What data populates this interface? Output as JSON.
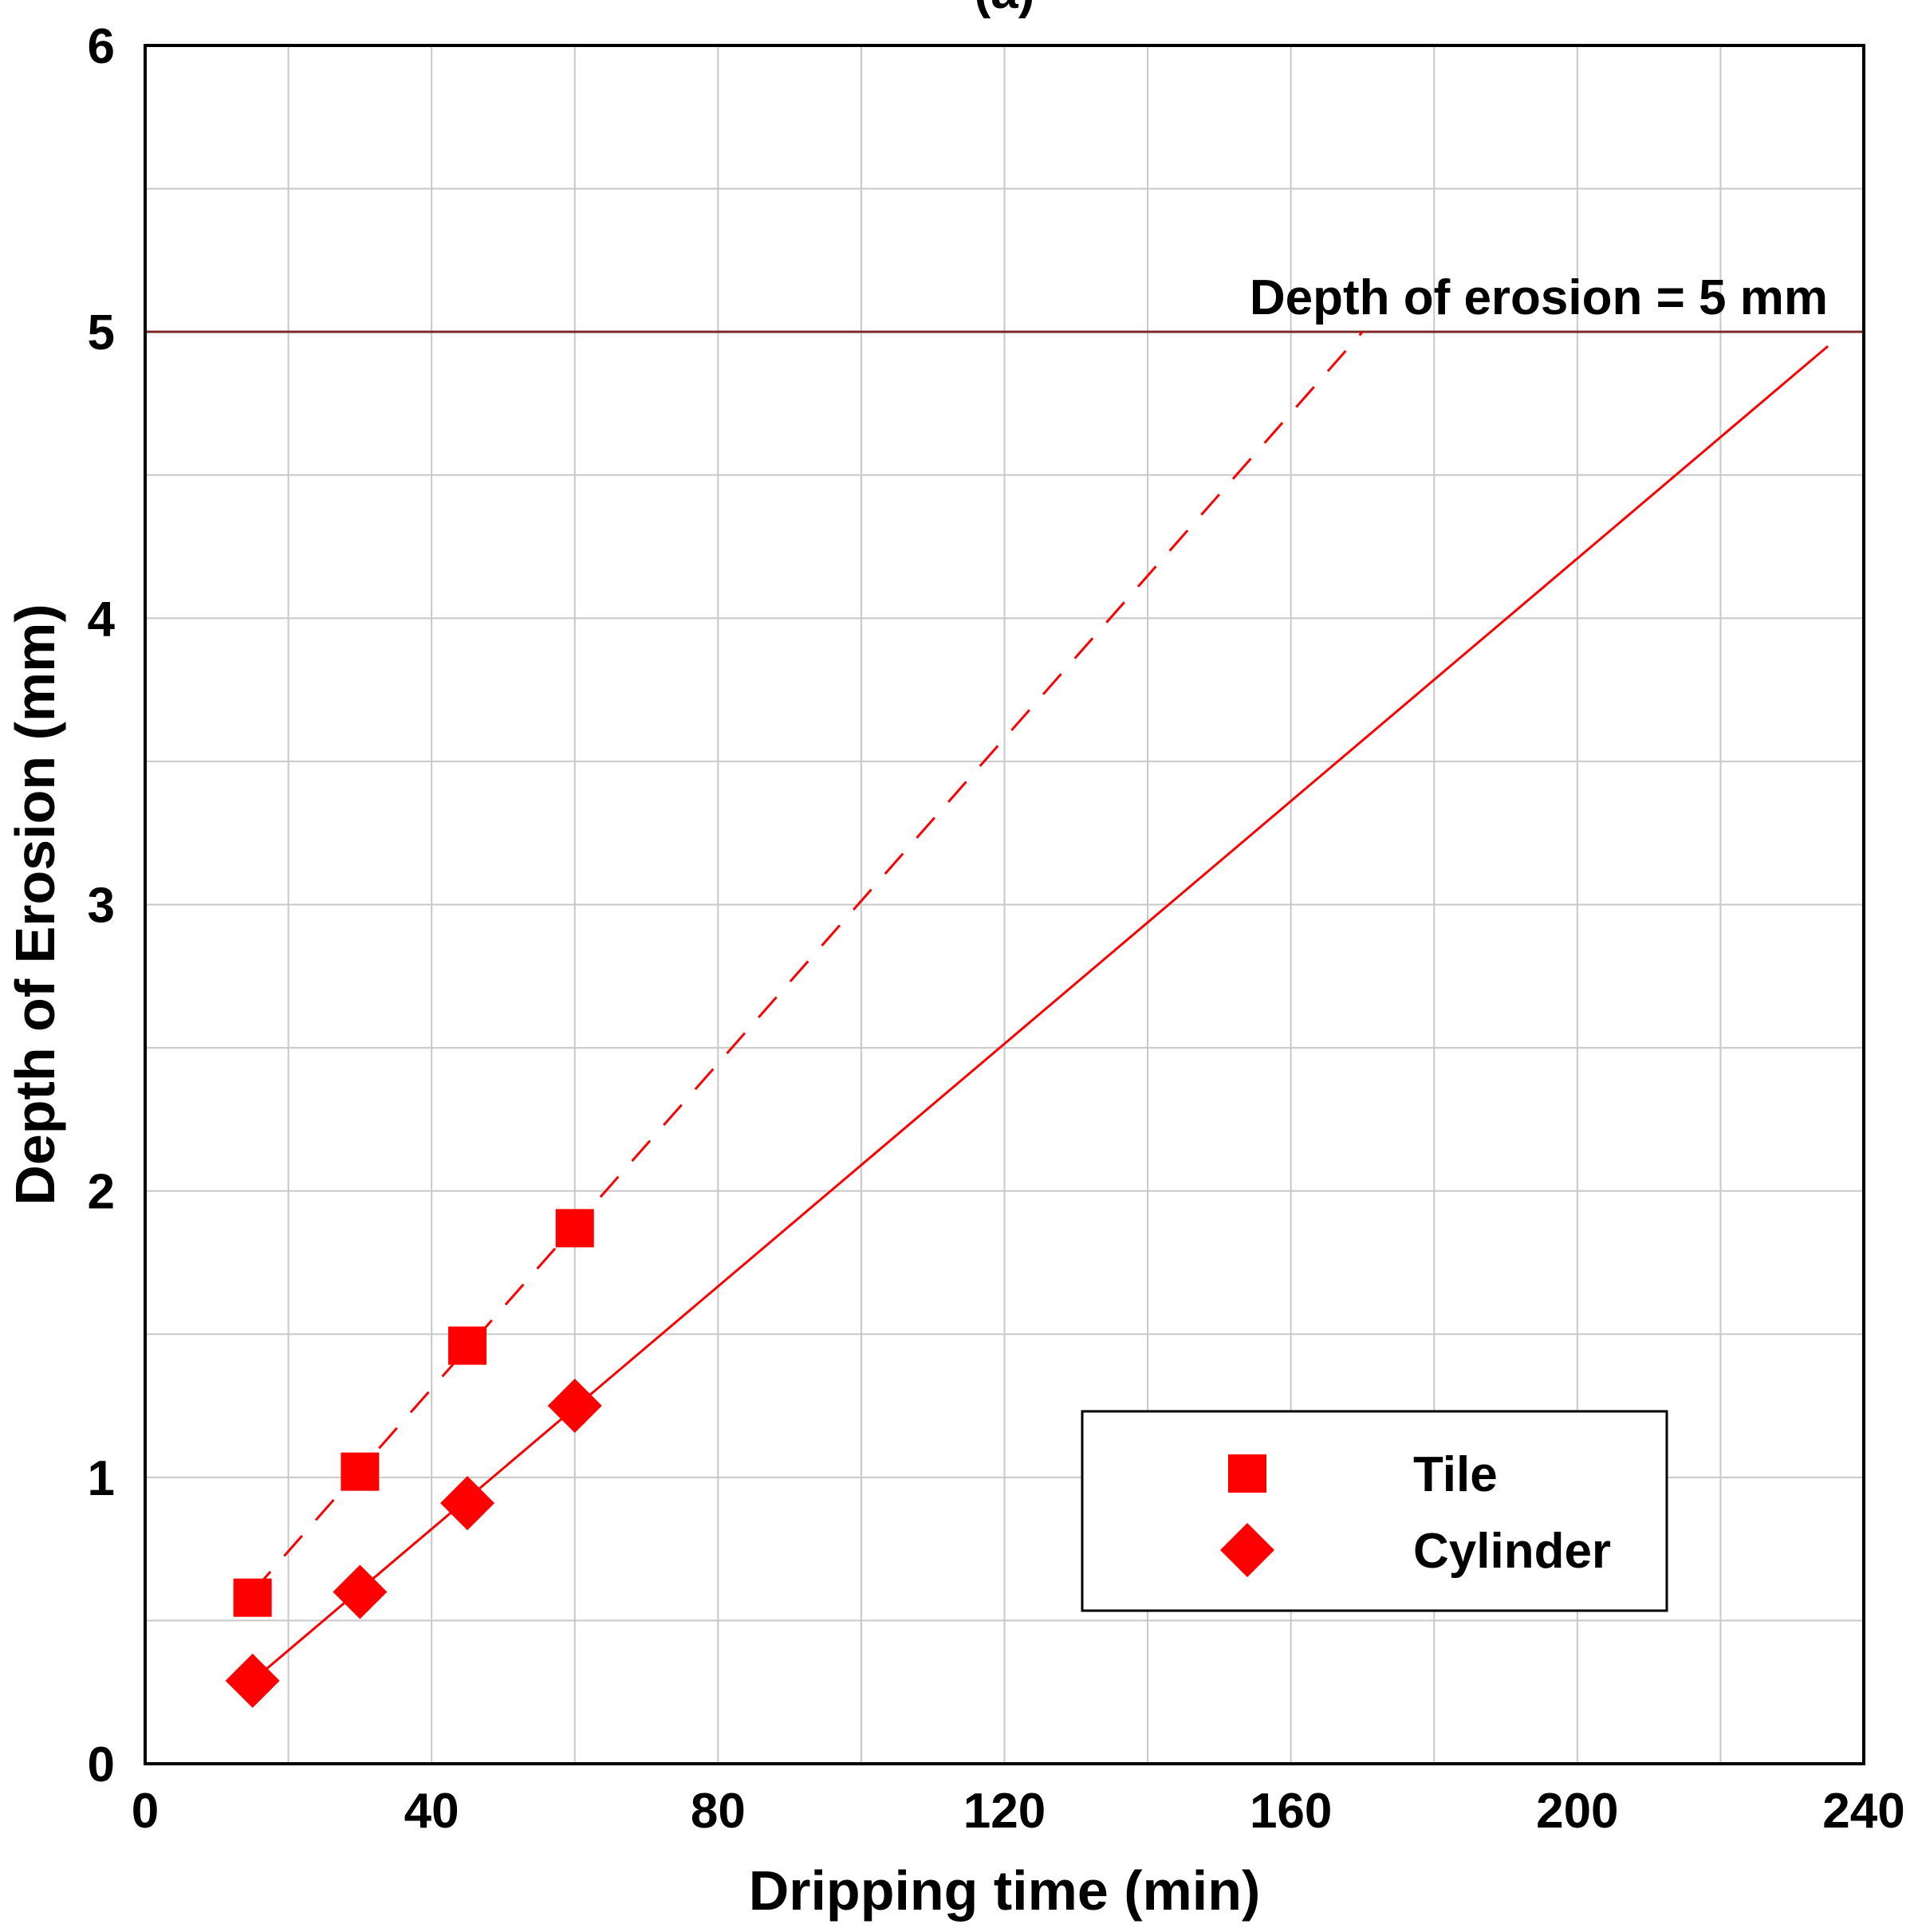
{
  "chart_data": {
    "type": "scatter",
    "panel_label": "(a)",
    "title": "",
    "xlabel": "Dripping time (min)",
    "ylabel": "Depth of Erosion (mm)",
    "xlim": [
      0,
      240
    ],
    "ylim": [
      0,
      6
    ],
    "x_ticks": [
      0,
      40,
      80,
      120,
      160,
      200,
      240
    ],
    "y_ticks": [
      0,
      1,
      2,
      3,
      4,
      5,
      6
    ],
    "x_minor_grid_step": 20,
    "y_minor_grid_step": 0.5,
    "grid": true,
    "series": [
      {
        "name": "Tile",
        "marker": "square",
        "color": "#ff0000",
        "points": [
          [
            15,
            0.58
          ],
          [
            30,
            1.02
          ],
          [
            45,
            1.46
          ],
          [
            60,
            1.87
          ]
        ],
        "trendline": {
          "style": "dashed",
          "from": [
            15,
            0.6
          ],
          "to": [
            170,
            5.0
          ]
        }
      },
      {
        "name": "Cylinder",
        "marker": "diamond",
        "color": "#ff0000",
        "points": [
          [
            15,
            0.29
          ],
          [
            30,
            0.6
          ],
          [
            45,
            0.91
          ],
          [
            60,
            1.25
          ]
        ],
        "trendline": {
          "style": "solid",
          "from": [
            15,
            0.29
          ],
          "to": [
            235,
            4.95
          ]
        }
      }
    ],
    "reference_line": {
      "y": 5,
      "color": "#7b2a2a",
      "label": "Depth of erosion = 5 mm"
    },
    "legend": {
      "position": "bottom-right",
      "entries": [
        "Tile",
        "Cylinder"
      ]
    }
  }
}
